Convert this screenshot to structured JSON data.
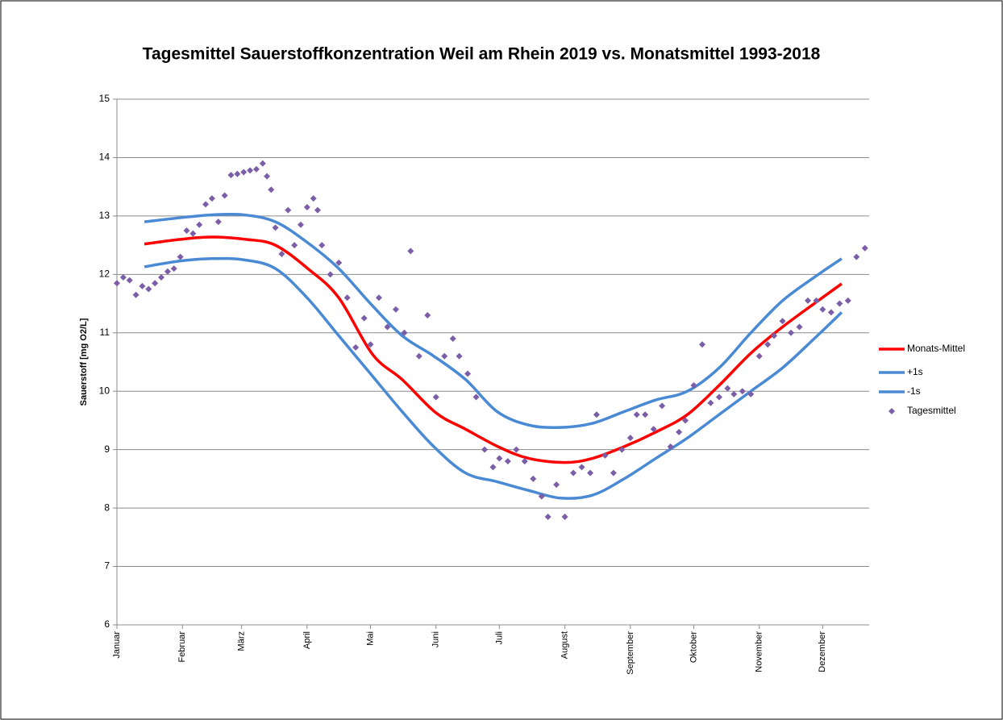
{
  "chart_data": {
    "type": "combo",
    "title": "Tagesmittel Sauerstoffkonzentration Weil am Rhein 2019 vs. Monatsmittel 1993-2018",
    "y_label": "Sauerstoff [mg O2/L]",
    "xlim": [
      0,
      356
    ],
    "xticks": [
      {
        "value": 0,
        "label": "Januar"
      },
      {
        "value": 31,
        "label": "Februar"
      },
      {
        "value": 59,
        "label": "März"
      },
      {
        "value": 90,
        "label": "April"
      },
      {
        "value": 120,
        "label": "Mai"
      },
      {
        "value": 151,
        "label": "Juni"
      },
      {
        "value": 181,
        "label": "Juli"
      },
      {
        "value": 212,
        "label": "August"
      },
      {
        "value": 243,
        "label": "September"
      },
      {
        "value": 273,
        "label": "Oktober"
      },
      {
        "value": 304,
        "label": "November"
      },
      {
        "value": 334,
        "label": "Dezember"
      }
    ],
    "ylim": [
      6,
      15
    ],
    "yticks": [
      6,
      7,
      8,
      9,
      10,
      11,
      12,
      13,
      14,
      15
    ],
    "grid": true,
    "legend": "right",
    "series": [
      {
        "name": "Monats-Mittel",
        "type": "line",
        "color": "#ff0000",
        "x": [
          13,
          30,
          45,
          61,
          75,
          91,
          105,
          121,
          135,
          151,
          165,
          181,
          195,
          212,
          225,
          240,
          255,
          270,
          285,
          300,
          315,
          330,
          343
        ],
        "values": [
          12.52,
          12.6,
          12.64,
          12.6,
          12.5,
          12.08,
          11.6,
          10.63,
          10.2,
          9.63,
          9.35,
          9.04,
          8.85,
          8.78,
          8.85,
          9.05,
          9.3,
          9.6,
          10.1,
          10.65,
          11.1,
          11.5,
          11.84
        ]
      },
      {
        "name": "+1s",
        "type": "line",
        "color": "#4a8ad4",
        "x": [
          13,
          30,
          45,
          60,
          75,
          90,
          105,
          120,
          135,
          150,
          165,
          180,
          195,
          210,
          225,
          240,
          255,
          270,
          285,
          300,
          315,
          330,
          343
        ],
        "values": [
          12.9,
          12.97,
          13.02,
          13.02,
          12.9,
          12.55,
          12.1,
          11.5,
          10.95,
          10.6,
          10.2,
          9.65,
          9.42,
          9.38,
          9.45,
          9.65,
          9.85,
          10.0,
          10.4,
          11.0,
          11.55,
          11.95,
          12.27
        ]
      },
      {
        "name": "-1s",
        "type": "line",
        "color": "#4a8ad4",
        "x": [
          13,
          30,
          45,
          60,
          75,
          90,
          105,
          120,
          135,
          150,
          165,
          180,
          195,
          210,
          225,
          240,
          255,
          270,
          285,
          300,
          315,
          330,
          343
        ],
        "values": [
          12.13,
          12.23,
          12.27,
          12.25,
          12.1,
          11.6,
          10.95,
          10.3,
          9.65,
          9.05,
          8.6,
          8.45,
          8.3,
          8.17,
          8.22,
          8.5,
          8.85,
          9.2,
          9.6,
          10.0,
          10.4,
          10.9,
          11.35
        ]
      },
      {
        "name": "Tagesmittel",
        "type": "scatter",
        "color": "#7b5ea7",
        "marker": "diamond",
        "x": [
          0,
          3,
          6,
          9,
          12,
          15,
          18,
          21,
          24,
          27,
          30,
          33,
          36,
          39,
          42,
          45,
          48,
          51,
          54,
          57,
          60,
          63,
          66,
          69,
          71,
          73,
          75,
          78,
          81,
          84,
          87,
          90,
          93,
          95,
          97,
          101,
          105,
          109,
          113,
          117,
          120,
          124,
          128,
          132,
          136,
          139,
          143,
          147,
          151,
          155,
          159,
          162,
          166,
          170,
          174,
          178,
          181,
          185,
          189,
          193,
          197,
          201,
          204,
          208,
          212,
          216,
          220,
          224,
          227,
          231,
          235,
          239,
          243,
          246,
          250,
          254,
          258,
          262,
          266,
          269,
          273,
          277,
          281,
          285,
          289,
          292,
          296,
          300,
          304,
          308,
          311,
          315,
          319,
          323,
          327,
          331,
          334,
          338,
          342,
          346,
          350,
          354
        ],
        "values": [
          11.85,
          11.95,
          11.9,
          11.65,
          11.8,
          11.75,
          11.85,
          11.95,
          12.05,
          12.1,
          12.3,
          12.75,
          12.7,
          12.85,
          13.2,
          13.3,
          12.9,
          13.35,
          13.7,
          13.72,
          13.75,
          13.78,
          13.8,
          13.9,
          13.68,
          13.45,
          12.8,
          12.35,
          13.1,
          12.5,
          12.85,
          13.15,
          13.3,
          13.1,
          12.5,
          12.0,
          12.2,
          11.6,
          10.75,
          11.25,
          10.8,
          11.6,
          11.1,
          11.4,
          11.0,
          12.4,
          10.6,
          11.3,
          9.9,
          10.6,
          10.9,
          10.6,
          10.3,
          9.9,
          9.0,
          8.7,
          8.85,
          8.8,
          9.0,
          8.8,
          8.5,
          8.2,
          7.85,
          8.4,
          7.85,
          8.6,
          8.7,
          8.6,
          9.6,
          8.9,
          8.6,
          9.0,
          9.2,
          9.6,
          9.6,
          9.35,
          9.75,
          9.05,
          9.3,
          9.5,
          10.1,
          10.8,
          9.8,
          9.9,
          10.05,
          9.95,
          10.0,
          9.95,
          10.6,
          10.8,
          10.95,
          11.2,
          11.0,
          11.1,
          11.55,
          11.55,
          11.4,
          11.35,
          11.5,
          11.55,
          12.3,
          12.45
        ]
      }
    ]
  }
}
